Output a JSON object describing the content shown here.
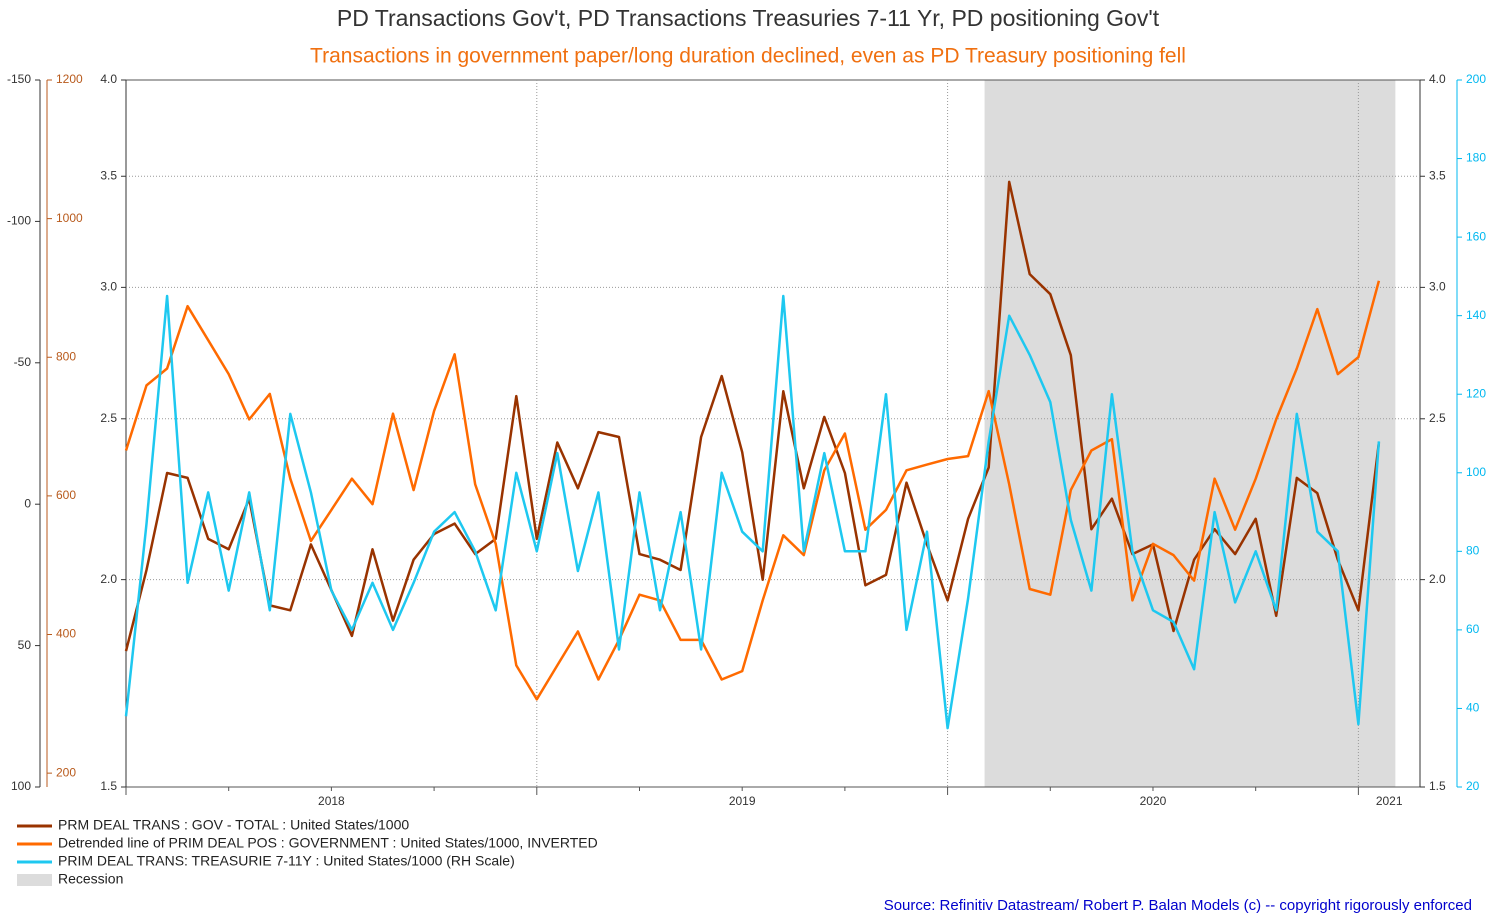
{
  "chart_data": {
    "type": "line",
    "title": "PD Transactions Gov't, PD Transactions Treasuries 7-11 Yr, PD positioning Gov't",
    "subtitle": "Transactions in government paper/long duration declined, even as PD Treasury positioning fell",
    "source": "Source: Refinitiv Datastream/  Robert P. Balan Models (c) -- copyright rigorously enforced",
    "xlim": [
      2018,
      2021.15
    ],
    "xticks": [
      2018,
      2019,
      2020,
      2021
    ],
    "grid": true,
    "axes": [
      {
        "id": "outer",
        "side": "left",
        "lim": [
          -150,
          100
        ],
        "inverted": true,
        "color": "#333333",
        "ticks": [
          -150,
          -100,
          -50,
          0,
          50,
          100
        ]
      },
      {
        "id": "gov",
        "side": "left",
        "lim": [
          180,
          1200
        ],
        "color": "#b85a1c",
        "ticks": [
          200,
          400,
          600,
          800,
          1000,
          1200
        ]
      },
      {
        "id": "log",
        "side": "both",
        "lim": [
          1.5,
          4
        ],
        "log": true,
        "color": "#333333",
        "ticks": [
          1.5,
          {
            "value": 2,
            "label": "2.0"
          },
          2.5,
          {
            "value": 3,
            "label": "3.0"
          },
          3.5,
          {
            "value": 4,
            "label": "4.0"
          }
        ]
      },
      {
        "id": "rh",
        "side": "right",
        "lim": [
          20,
          200
        ],
        "color": "#00b8f0",
        "ticks": [
          20,
          40,
          60,
          80,
          100,
          120,
          140,
          160,
          180,
          200
        ]
      }
    ],
    "recession": {
      "name": "Recession",
      "start": 2020.09,
      "end": 2021.09,
      "color": "#dcdcdc"
    },
    "x": [
      2018.0,
      2018.05,
      2018.1,
      2018.15,
      2018.2,
      2018.25,
      2018.3,
      2018.35,
      2018.4,
      2018.45,
      2018.5,
      2018.55,
      2018.6,
      2018.65,
      2018.7,
      2018.75,
      2018.8,
      2018.85,
      2018.9,
      2018.95,
      2019.0,
      2019.05,
      2019.1,
      2019.15,
      2019.2,
      2019.25,
      2019.3,
      2019.35,
      2019.4,
      2019.45,
      2019.5,
      2019.55,
      2019.6,
      2019.65,
      2019.7,
      2019.75,
      2019.8,
      2019.85,
      2019.9,
      2019.95,
      2020.0,
      2020.05,
      2020.1,
      2020.15,
      2020.2,
      2020.25,
      2020.3,
      2020.35,
      2020.4,
      2020.45,
      2020.5,
      2020.55,
      2020.6,
      2020.65,
      2020.7,
      2020.75,
      2020.8,
      2020.85,
      2020.9,
      2020.95,
      2021.0,
      2021.05
    ],
    "series": [
      {
        "name": "PRM DEAL TRANS : GOV - TOTAL : United States/1000",
        "color": "#993300",
        "axis": "gov",
        "values": [
          376,
          493,
          633,
          626,
          538,
          523,
          596,
          442,
          435,
          530,
          464,
          398,
          523,
          420,
          508,
          545,
          560,
          516,
          538,
          744,
          538,
          677,
          611,
          692,
          685,
          516,
          508,
          493,
          685,
          773,
          663,
          479,
          751,
          611,
          714,
          633,
          471,
          486,
          619,
          530,
          449,
          567,
          641,
          1053,
          920,
          891,
          803,
          552,
          596,
          516,
          530,
          405,
          508,
          552,
          516,
          567,
          427,
          626,
          604,
          508,
          435,
          677
        ]
      },
      {
        "name": "Detrended line of PRIM DEAL POS : GOVERNMENT : United States/1000, INVERTED",
        "color": "#ff6a00",
        "axis": "outer",
        "values": [
          -19,
          -42,
          -48,
          -70,
          -58,
          -46,
          -30,
          -39,
          -9,
          13,
          2,
          -9,
          0,
          -32,
          -5,
          -33,
          -53,
          -7,
          14,
          57,
          69,
          57,
          45,
          62,
          48,
          32,
          34,
          48,
          48,
          62,
          59,
          34,
          11,
          18,
          -12,
          -25,
          9,
          2,
          -12,
          -14,
          -16,
          -17,
          -40,
          -7,
          30,
          32,
          -5,
          -19,
          -23,
          34,
          14,
          18,
          27,
          -9,
          9,
          -9,
          -30,
          -48,
          -69,
          -46,
          -52,
          -79
        ]
      },
      {
        "name": "PRIM DEAL TRANS: TREASURIE 7-11Y : United States/1000 (RH Scale)",
        "color": "#1ec8f0",
        "axis": "rh",
        "values": [
          38,
          87,
          145,
          72,
          95,
          70,
          95,
          65,
          115,
          95,
          70,
          60,
          72,
          60,
          72,
          85,
          90,
          80,
          65,
          100,
          80,
          105,
          75,
          95,
          55,
          95,
          65,
          90,
          55,
          100,
          85,
          80,
          145,
          80,
          105,
          80,
          80,
          120,
          60,
          85,
          35,
          68,
          108,
          140,
          130,
          118,
          88,
          70,
          120,
          80,
          65,
          62,
          50,
          90,
          67,
          80,
          65,
          115,
          85,
          80,
          36,
          108
        ]
      }
    ]
  }
}
